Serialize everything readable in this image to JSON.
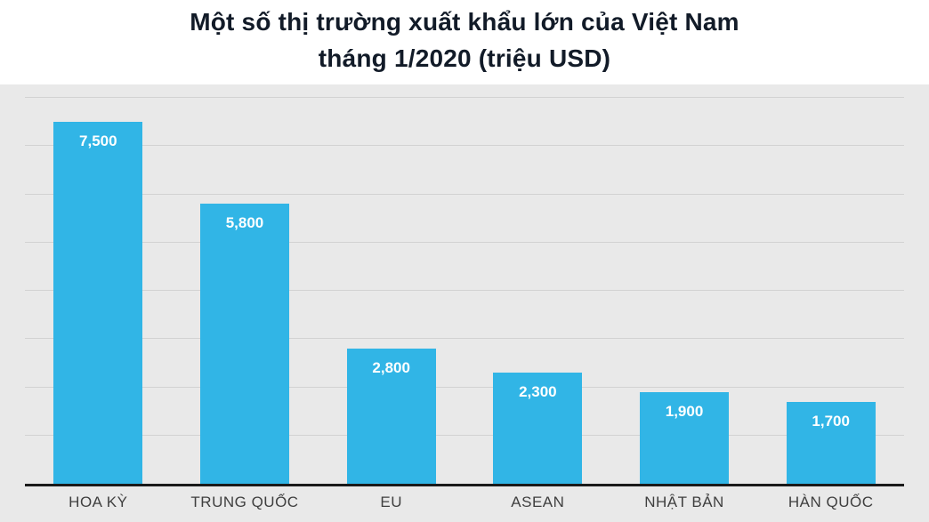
{
  "title": {
    "line1": "Một số thị trường xuất khẩu lớn của Việt Nam",
    "line2": "tháng 1/2020 (triệu USD)"
  },
  "chart_data": {
    "type": "bar",
    "title": "Một số thị trường xuất khẩu lớn của Việt Nam tháng 1/2020 (triệu USD)",
    "categories": [
      "HOA KỲ",
      "TRUNG QUỐC",
      "EU",
      "ASEAN",
      "NHẬT BẢN",
      "HÀN QUỐC"
    ],
    "values": [
      7500,
      5800,
      2800,
      2300,
      1900,
      1700
    ],
    "value_labels": [
      "7,500",
      "5,800",
      "2,800",
      "2,300",
      "1,900",
      "1,700"
    ],
    "xlabel": "",
    "ylabel": "",
    "ylim": [
      0,
      8000
    ],
    "grid_step": 1000,
    "grid": true,
    "legend": false,
    "colors": {
      "bar": "#31b5e6",
      "plot_background": "#e9e9e9",
      "gridline": "#d2d2d2",
      "axis": "#1a1a1a",
      "value_label": "#ffffff",
      "category_label": "#3f3f3f",
      "title": "#121b28"
    }
  }
}
